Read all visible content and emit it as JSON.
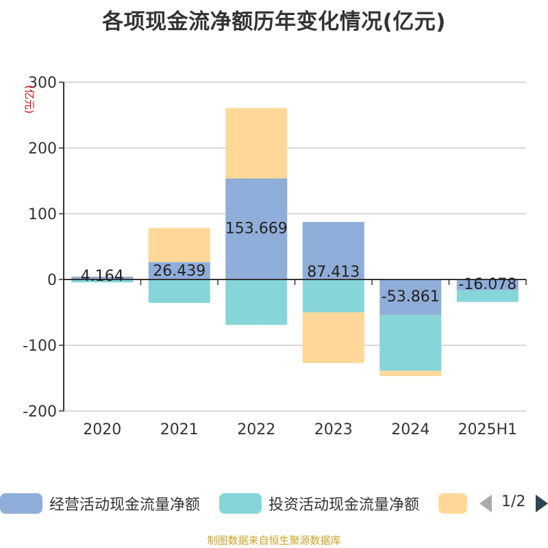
{
  "title": "各项现金流净额历年变化情况(亿元)",
  "source": "制图数据来自恒生聚源数据库",
  "pager": "1/2",
  "chart_data": {
    "type": "bar",
    "stacked": true,
    "title": "各项现金流净额历年变化情况(亿元)",
    "ylabel": "(亿元)",
    "ylabel_color": "#dd0000",
    "ylim": [
      -200,
      300
    ],
    "yticks": [
      300,
      200,
      100,
      0,
      -100,
      -200
    ],
    "grid": true,
    "legend_position": "bottom",
    "categories": [
      "2020",
      "2021",
      "2022",
      "2023",
      "2024",
      "2025H1"
    ],
    "series": [
      {
        "name": "经营活动现金流量净额",
        "color": "#8fadd9",
        "values": [
          4.164,
          26.439,
          153.669,
          87.413,
          -53.861,
          -16.078
        ],
        "labels": [
          "4.164",
          "26.439",
          "153.669",
          "87.413",
          "-53.861",
          "-16.078"
        ]
      },
      {
        "name": "投资活动现金流量净额",
        "color": "#86d5d8",
        "values": [
          -4.5,
          -35.5,
          -69.0,
          -50.0,
          -85.0,
          -18.0
        ]
      },
      {
        "name": "",
        "color": "#ffd899",
        "values": [
          0.5,
          52.0,
          107.0,
          -77.0,
          -8.0,
          0
        ]
      }
    ]
  }
}
